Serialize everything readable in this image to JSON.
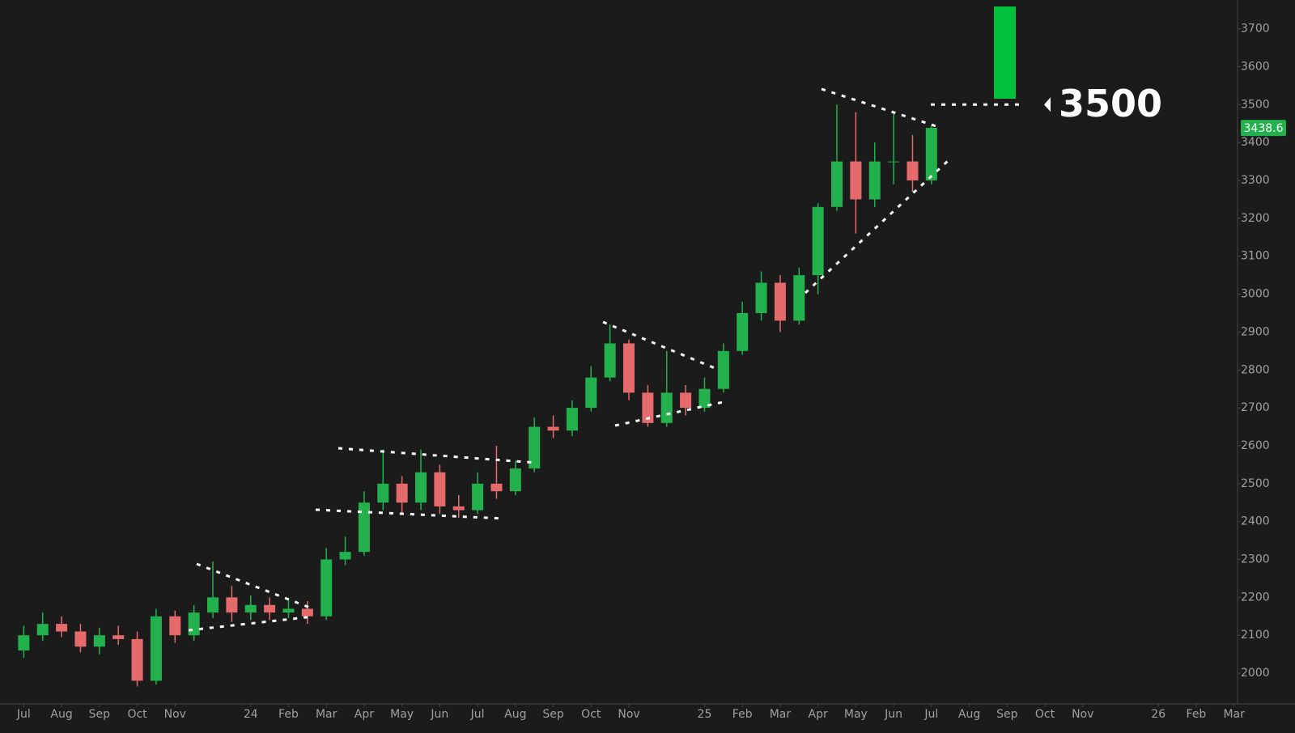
{
  "chart_data": {
    "type": "candlestick",
    "x": [
      0,
      0.5,
      1,
      1.5,
      2,
      2.5,
      3,
      3.5,
      4,
      4.5,
      5,
      5.5,
      6,
      6.5,
      7,
      7.5,
      8,
      8.5,
      9,
      9.5,
      10,
      10.5,
      11,
      11.5,
      12,
      12.5,
      13,
      13.5,
      14,
      14.5,
      15,
      15.5,
      16,
      16.5,
      17,
      17.5,
      18,
      18.5,
      19,
      19.5,
      20,
      20.5,
      21,
      21.5,
      22,
      22.5,
      23,
      23.5,
      24
    ],
    "open": [
      2060,
      2100,
      2130,
      2110,
      2070,
      2100,
      2090,
      1980,
      2150,
      2100,
      2160,
      2200,
      2160,
      2180,
      2160,
      2170,
      2150,
      2300,
      2320,
      2450,
      2500,
      2450,
      2530,
      2440,
      2430,
      2500,
      2480,
      2540,
      2650,
      2640,
      2700,
      2780,
      2870,
      2740,
      2660,
      2740,
      2700,
      2750,
      2850,
      2950,
      3030,
      2930,
      3050,
      3230,
      3350,
      3250,
      3350,
      3350,
      3300
    ],
    "high": [
      2125,
      2160,
      2150,
      2130,
      2120,
      2125,
      2110,
      2170,
      2165,
      2180,
      2295,
      2230,
      2205,
      2200,
      2195,
      2190,
      2330,
      2360,
      2480,
      2590,
      2520,
      2590,
      2550,
      2470,
      2530,
      2600,
      2560,
      2675,
      2680,
      2720,
      2810,
      2920,
      2880,
      2760,
      2850,
      2760,
      2780,
      2870,
      2980,
      3060,
      3050,
      3070,
      3240,
      3500,
      3480,
      3400,
      3480,
      3420,
      3445
    ],
    "low": [
      2040,
      2085,
      2095,
      2055,
      2050,
      2075,
      1965,
      1970,
      2080,
      2085,
      2145,
      2135,
      2140,
      2140,
      2145,
      2130,
      2140,
      2285,
      2310,
      2430,
      2420,
      2430,
      2420,
      2410,
      2420,
      2460,
      2470,
      2530,
      2620,
      2625,
      2690,
      2770,
      2720,
      2650,
      2650,
      2680,
      2690,
      2740,
      2840,
      2930,
      2900,
      2920,
      3000,
      3220,
      3160,
      3230,
      3290,
      3270,
      3290
    ],
    "close": [
      2100,
      2130,
      2110,
      2070,
      2100,
      2090,
      1980,
      2150,
      2100,
      2160,
      2200,
      2160,
      2180,
      2160,
      2170,
      2150,
      2300,
      2320,
      2450,
      2500,
      2450,
      2530,
      2440,
      2430,
      2500,
      2480,
      2540,
      2650,
      2640,
      2700,
      2780,
      2870,
      2740,
      2660,
      2740,
      2700,
      2750,
      2850,
      2950,
      3030,
      2930,
      3050,
      3230,
      3350,
      3250,
      3350,
      3350,
      3300,
      3438.6
    ],
    "up_color": "#22b14c",
    "down_color": "#e56a6c",
    "target": 3500,
    "xlim": [
      -0.5,
      32.05
    ],
    "ylim": [
      1919,
      3776
    ],
    "yticks": [
      2000,
      2100,
      2200,
      2300,
      2400,
      2500,
      2600,
      2700,
      2800,
      2900,
      3000,
      3100,
      3200,
      3300,
      3400,
      3500,
      3600,
      3700
    ],
    "xticks": [
      {
        "value": 0,
        "label": "Jul"
      },
      {
        "value": 1,
        "label": "Aug"
      },
      {
        "value": 2,
        "label": "Sep"
      },
      {
        "value": 3,
        "label": "Oct"
      },
      {
        "value": 4,
        "label": "Nov"
      },
      {
        "value": 6,
        "label": "24"
      },
      {
        "value": 7,
        "label": "Feb"
      },
      {
        "value": 8,
        "label": "Mar"
      },
      {
        "value": 9,
        "label": "Apr"
      },
      {
        "value": 10,
        "label": "May"
      },
      {
        "value": 11,
        "label": "Jun"
      },
      {
        "value": 12,
        "label": "Jul"
      },
      {
        "value": 13,
        "label": "Aug"
      },
      {
        "value": 14,
        "label": "Sep"
      },
      {
        "value": 15,
        "label": "Oct"
      },
      {
        "value": 16,
        "label": "Nov"
      },
      {
        "value": 18,
        "label": "25"
      },
      {
        "value": 19,
        "label": "Feb"
      },
      {
        "value": 20,
        "label": "Mar"
      },
      {
        "value": 21,
        "label": "Apr"
      },
      {
        "value": 22,
        "label": "May"
      },
      {
        "value": 23,
        "label": "Jun"
      },
      {
        "value": 24,
        "label": "Jul"
      },
      {
        "value": 25,
        "label": "Aug"
      },
      {
        "value": 26,
        "label": "Sep"
      },
      {
        "value": 27,
        "label": "Oct"
      },
      {
        "value": 28,
        "label": "Nov"
      },
      {
        "value": 30,
        "label": "26"
      },
      {
        "value": 31,
        "label": "Feb"
      },
      {
        "value": 32,
        "label": "Mar"
      }
    ]
  }
}
